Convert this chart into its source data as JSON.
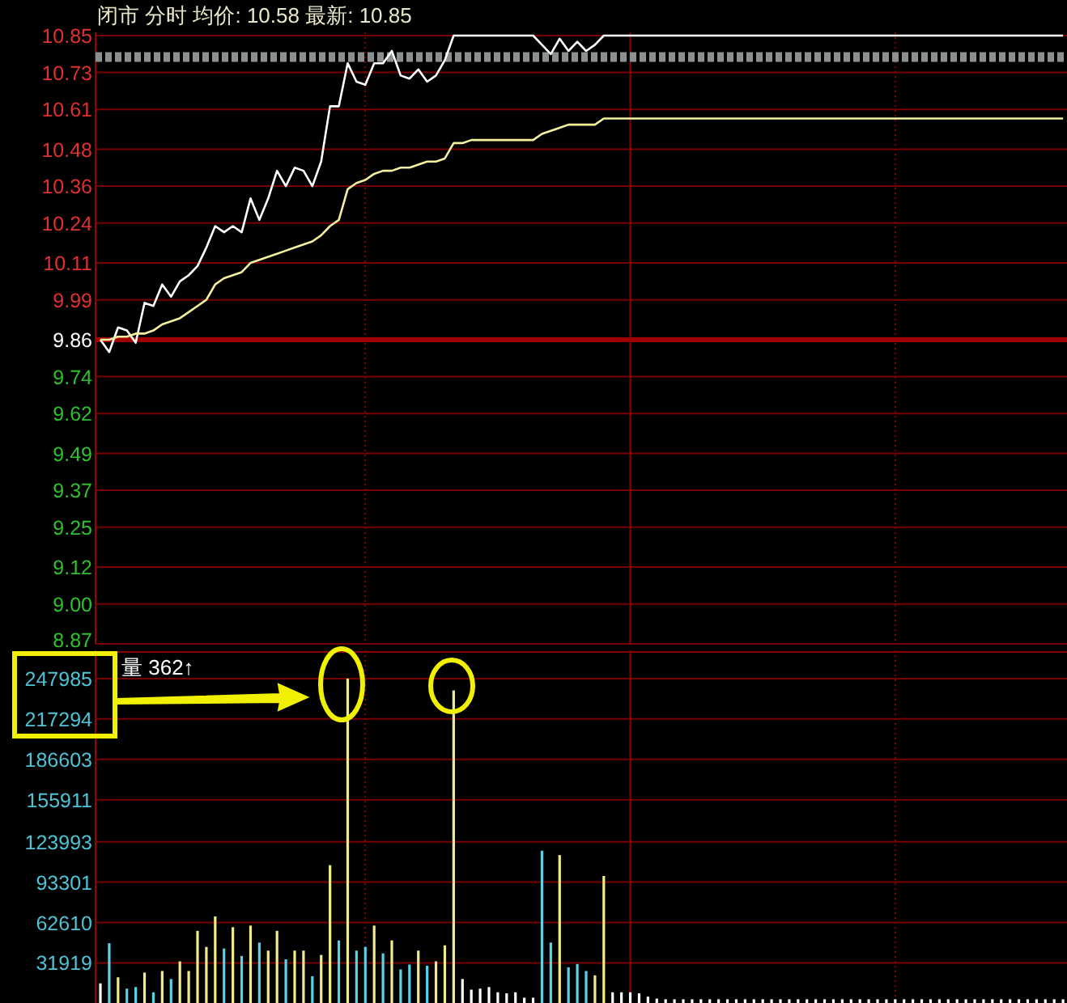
{
  "chart_data": [
    {
      "type": "line",
      "title": "闭市 分时 均价: 10.58 最新: 10.85",
      "categories": [
        null,
        null,
        null,
        null,
        null,
        null,
        null,
        null,
        null,
        null,
        null,
        null,
        null,
        null,
        null,
        null,
        null,
        null,
        null,
        null,
        null,
        null,
        null,
        null,
        null,
        null,
        null,
        null,
        null,
        null,
        null,
        null,
        null,
        null,
        null,
        null,
        null,
        null,
        null,
        null,
        null,
        null,
        null,
        null,
        null,
        null,
        null,
        null,
        null,
        null,
        null,
        null,
        null,
        null,
        null,
        null,
        null,
        null,
        null,
        null,
        null,
        null,
        null,
        null,
        null,
        null,
        null,
        null,
        null,
        null,
        null,
        null,
        null,
        null,
        null,
        null,
        null,
        null,
        null,
        null,
        null,
        null,
        null,
        null,
        null,
        null,
        null,
        null,
        null,
        null,
        null,
        null,
        null,
        null,
        null,
        null,
        null,
        null,
        null,
        null,
        null,
        null,
        null,
        null,
        null,
        null,
        null,
        null,
        null,
        null
      ],
      "series": [
        {
          "color": "#ffffff",
          "values": [
            9.86,
            9.82,
            9.9,
            9.89,
            9.85,
            9.98,
            9.97,
            10.04,
            10.0,
            10.05,
            10.07,
            10.1,
            10.16,
            10.23,
            10.21,
            10.23,
            10.21,
            10.32,
            10.25,
            10.32,
            10.41,
            10.36,
            10.42,
            10.41,
            10.36,
            10.44,
            10.62,
            10.62,
            10.76,
            10.7,
            10.69,
            10.76,
            10.76,
            10.8,
            10.72,
            10.71,
            10.74,
            10.7,
            10.72,
            10.77,
            10.85,
            10.85,
            10.85,
            10.85,
            10.85,
            10.85,
            10.85,
            10.85,
            10.85,
            10.85,
            10.82,
            10.79,
            10.84,
            10.8,
            10.83,
            10.8,
            10.82,
            10.85,
            10.85,
            10.85,
            10.85,
            10.85,
            10.85,
            10.85,
            10.85,
            10.85,
            10.85,
            10.85,
            10.85,
            10.85,
            10.85,
            10.85,
            10.85,
            10.85,
            10.85,
            10.85,
            10.85,
            10.85,
            10.85,
            10.85,
            10.85,
            10.85,
            10.85,
            10.85,
            10.85,
            10.85,
            10.85,
            10.85,
            10.85,
            10.85,
            10.85,
            10.85,
            10.85,
            10.85,
            10.85,
            10.85,
            10.85,
            10.85,
            10.85,
            10.85,
            10.85,
            10.85,
            10.85,
            10.85,
            10.85,
            10.85,
            10.85,
            10.85,
            10.85,
            10.85
          ]
        },
        {
          "color": "#f5f0a0",
          "values": [
            9.86,
            9.86,
            9.87,
            9.87,
            9.88,
            9.88,
            9.89,
            9.91,
            9.92,
            9.93,
            9.95,
            9.97,
            9.99,
            10.04,
            10.06,
            10.07,
            10.08,
            10.11,
            10.12,
            10.13,
            10.14,
            10.15,
            10.16,
            10.17,
            10.18,
            10.2,
            10.23,
            10.25,
            10.35,
            10.37,
            10.38,
            10.4,
            10.41,
            10.41,
            10.42,
            10.42,
            10.43,
            10.44,
            10.44,
            10.45,
            10.5,
            10.5,
            10.51,
            10.51,
            10.51,
            10.51,
            10.51,
            10.51,
            10.51,
            10.51,
            10.53,
            10.54,
            10.55,
            10.56,
            10.56,
            10.56,
            10.56,
            10.58,
            10.58,
            10.58,
            10.58,
            10.58,
            10.58,
            10.58,
            10.58,
            10.58,
            10.58,
            10.58,
            10.58,
            10.58,
            10.58,
            10.58,
            10.58,
            10.58,
            10.58,
            10.58,
            10.58,
            10.58,
            10.58,
            10.58,
            10.58,
            10.58,
            10.58,
            10.58,
            10.58,
            10.58,
            10.58,
            10.58,
            10.58,
            10.58,
            10.58,
            10.58,
            10.58,
            10.58,
            10.58,
            10.58,
            10.58,
            10.58,
            10.58,
            10.58,
            10.58,
            10.58,
            10.58,
            10.58,
            10.58,
            10.58,
            10.58,
            10.58,
            10.58,
            10.58
          ]
        }
      ],
      "ylim": [
        8.87,
        10.85
      ],
      "yticks": [
        {
          "value": 8.87,
          "label": "8.87"
        },
        {
          "value": 9.0,
          "label": "9.00"
        },
        {
          "value": 9.12,
          "label": "9.12"
        },
        {
          "value": 9.25,
          "label": "9.25"
        },
        {
          "value": 9.37,
          "label": "9.37"
        },
        {
          "value": 9.49,
          "label": "9.49"
        },
        {
          "value": 9.62,
          "label": "9.62"
        },
        {
          "value": 9.74,
          "label": "9.74"
        },
        {
          "value": 9.86,
          "label": "9.86"
        },
        {
          "value": 9.99,
          "label": "9.99"
        },
        {
          "value": 10.11,
          "label": "10.11"
        },
        {
          "value": 10.24,
          "label": "10.24"
        },
        {
          "value": 10.36,
          "label": "10.36"
        },
        {
          "value": 10.48,
          "label": "10.48"
        },
        {
          "value": 10.61,
          "label": "10.61"
        },
        {
          "value": 10.73,
          "label": "10.73"
        },
        {
          "value": 10.85,
          "label": "10.85"
        }
      ],
      "ref_lines": [
        {
          "axis": "y",
          "value": 9.86,
          "color": "#a00000",
          "line_style": "solid"
        },
        {
          "axis": "y",
          "value": 10.78,
          "color": "#8c9090",
          "line_style": "dotted"
        }
      ],
      "grid": true,
      "marker": "none"
    },
    {
      "type": "bar",
      "categories": [
        null,
        null,
        null,
        null,
        null,
        null,
        null,
        null,
        null,
        null,
        null,
        null,
        null,
        null,
        null,
        null,
        null,
        null,
        null,
        null,
        null,
        null,
        null,
        null,
        null,
        null,
        null,
        null,
        null,
        null,
        null,
        null,
        null,
        null,
        null,
        null,
        null,
        null,
        null,
        null,
        null,
        null,
        null,
        null,
        null,
        null,
        null,
        null,
        null,
        null,
        null,
        null,
        null,
        null,
        null,
        null,
        null,
        null,
        null,
        null,
        null,
        null,
        null,
        null,
        null,
        null,
        null,
        null,
        null,
        null,
        null,
        null,
        null,
        null,
        null,
        null,
        null,
        null,
        null,
        null,
        null,
        null,
        null,
        null,
        null,
        null,
        null,
        null,
        null,
        null,
        null,
        null,
        null,
        null,
        null,
        null,
        null,
        null,
        null,
        null,
        null,
        null,
        null,
        null,
        null,
        null,
        null,
        null,
        null,
        null
      ],
      "values": [
        16400,
        46900,
        21000,
        12400,
        13600,
        24600,
        9600,
        25800,
        19700,
        33100,
        25800,
        56300,
        44100,
        67200,
        42900,
        59100,
        37200,
        60300,
        47400,
        41300,
        56300,
        34700,
        41300,
        41300,
        21800,
        38000,
        106200,
        49000,
        248000,
        41300,
        44100,
        60300,
        39200,
        49000,
        27000,
        30700,
        41300,
        29800,
        33100,
        45300,
        239000,
        19700,
        11600,
        12400,
        13600,
        9600,
        8800,
        9600,
        5500,
        5500,
        117200,
        47400,
        113900,
        28600,
        31100,
        25800,
        22500,
        98000,
        9600,
        9600,
        9600,
        8800,
        6300,
        4800,
        4300,
        4300,
        4300,
        4300,
        4300,
        4300,
        4300,
        4300,
        4300,
        4300,
        4300,
        4300,
        4300,
        4300,
        4300,
        4300,
        4300,
        4300,
        4300,
        4300,
        4300,
        4300,
        4300,
        4300,
        4300,
        4300,
        4300,
        4300,
        4300,
        4300,
        4300,
        4300,
        4300,
        4300,
        4300,
        4300,
        4300,
        4300,
        4300,
        4300,
        4300,
        4300,
        4300,
        4300,
        4300,
        4300
      ],
      "colors": [
        "#ffffff",
        "#5ad2e6",
        "#f0ec8c",
        "#5ad2e6",
        "#5ad2e6",
        "#f0ec8c",
        "#5ad2e6",
        "#f0ec8c",
        "#5ad2e6",
        "#f0ec8c",
        "#f0ec8c",
        "#f0ec8c",
        "#f0ec8c",
        "#f0ec8c",
        "#5ad2e6",
        "#f0ec8c",
        "#5ad2e6",
        "#f0ec8c",
        "#5ad2e6",
        "#f0ec8c",
        "#f0ec8c",
        "#5ad2e6",
        "#f0ec8c",
        "#f0ec8c",
        "#5ad2e6",
        "#f0ec8c",
        "#f0ec8c",
        "#5ad2e6",
        "#f0ec8c",
        "#5ad2e6",
        "#5ad2e6",
        "#f0ec8c",
        "#5ad2e6",
        "#f0ec8c",
        "#5ad2e6",
        "#5ad2e6",
        "#f0ec8c",
        "#5ad2e6",
        "#f0ec8c",
        "#f0ec8c",
        "#f0ec8c",
        "#ffffff",
        "#ffffff",
        "#ffffff",
        "#ffffff",
        "#ffffff",
        "#ffffff",
        "#ffffff",
        "#ffffff",
        "#ffffff",
        "#5ad2e6",
        "#5ad2e6",
        "#f0ec8c",
        "#5ad2e6",
        "#5ad2e6",
        "#5ad2e6",
        "#f0ec8c",
        "#f0ec8c",
        "#ffffff",
        "#ffffff",
        "#ffffff",
        "#ffffff",
        "#ffffff",
        "#ffffff",
        "#ffffff",
        "#ffffff",
        "#ffffff",
        "#ffffff",
        "#ffffff",
        "#ffffff",
        "#ffffff",
        "#ffffff",
        "#ffffff",
        "#ffffff",
        "#ffffff",
        "#ffffff",
        "#ffffff",
        "#ffffff",
        "#ffffff",
        "#ffffff",
        "#ffffff",
        "#ffffff",
        "#ffffff",
        "#ffffff",
        "#ffffff",
        "#ffffff",
        "#ffffff",
        "#ffffff",
        "#ffffff",
        "#ffffff",
        "#ffffff",
        "#ffffff",
        "#ffffff",
        "#ffffff",
        "#ffffff",
        "#ffffff",
        "#ffffff",
        "#ffffff",
        "#ffffff",
        "#ffffff",
        "#ffffff",
        "#ffffff",
        "#ffffff",
        "#ffffff",
        "#ffffff",
        "#ffffff",
        "#ffffff",
        "#ffffff",
        "#ffffff",
        "#ffffff"
      ],
      "ylim": [
        0,
        267000
      ],
      "yticks": [
        31919,
        62610,
        93301,
        123993,
        155911,
        186603,
        217294,
        247985
      ],
      "annotations": [
        "量 362↑"
      ],
      "grid": true
    }
  ]
}
